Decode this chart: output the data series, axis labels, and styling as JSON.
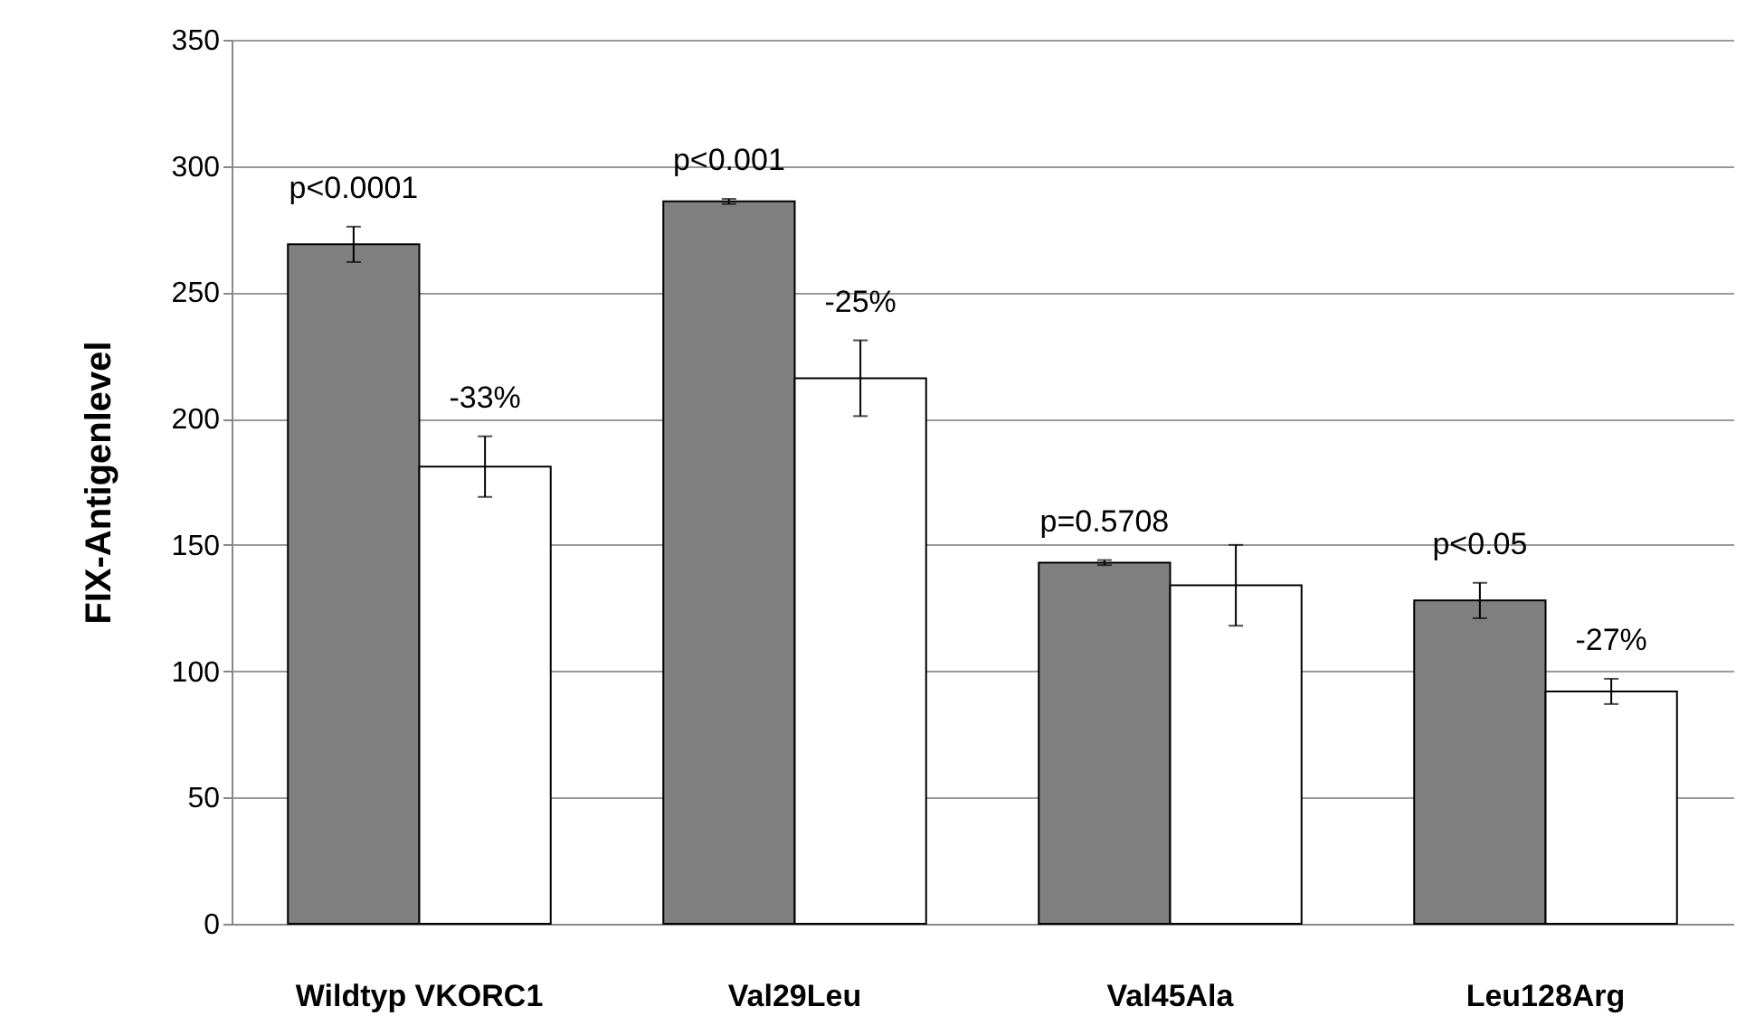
{
  "chart_data": {
    "type": "bar",
    "ylabel": "FIX-Antigenlevel",
    "categories": [
      "Wildtyp VKORC1",
      "Val29Leu",
      "Val45Ala",
      "Leu128Arg"
    ],
    "series": [
      {
        "color": "#808080",
        "values": [
          269,
          286,
          143,
          128
        ],
        "errors": [
          7,
          1,
          1,
          7
        ]
      },
      {
        "color": "#ffffff",
        "values": [
          181,
          216,
          134,
          92
        ],
        "errors": [
          12,
          15,
          16,
          5
        ]
      }
    ],
    "ylim": [
      0,
      350
    ],
    "yticks": [
      0,
      50,
      100,
      150,
      200,
      250,
      300,
      350
    ],
    "grid": "y",
    "legend": false,
    "annotations": [
      {
        "text": "p<0.0001",
        "x": "Wildtyp VKORC1",
        "y": 269
      },
      {
        "text": "p<0.001",
        "x": "Val29Leu",
        "y": 286
      },
      {
        "text": "p=0.5708",
        "x": "Val45Ala",
        "y": 143
      },
      {
        "text": "p<0.05",
        "x": "Leu128Arg",
        "y": 128
      },
      {
        "text": "-33%",
        "x": "Wildtyp VKORC1",
        "y": 181
      },
      {
        "text": "-25%",
        "x": "Val29Leu",
        "y": 216
      },
      {
        "text": "-27%",
        "x": "Leu128Arg",
        "y": 92
      }
    ]
  }
}
